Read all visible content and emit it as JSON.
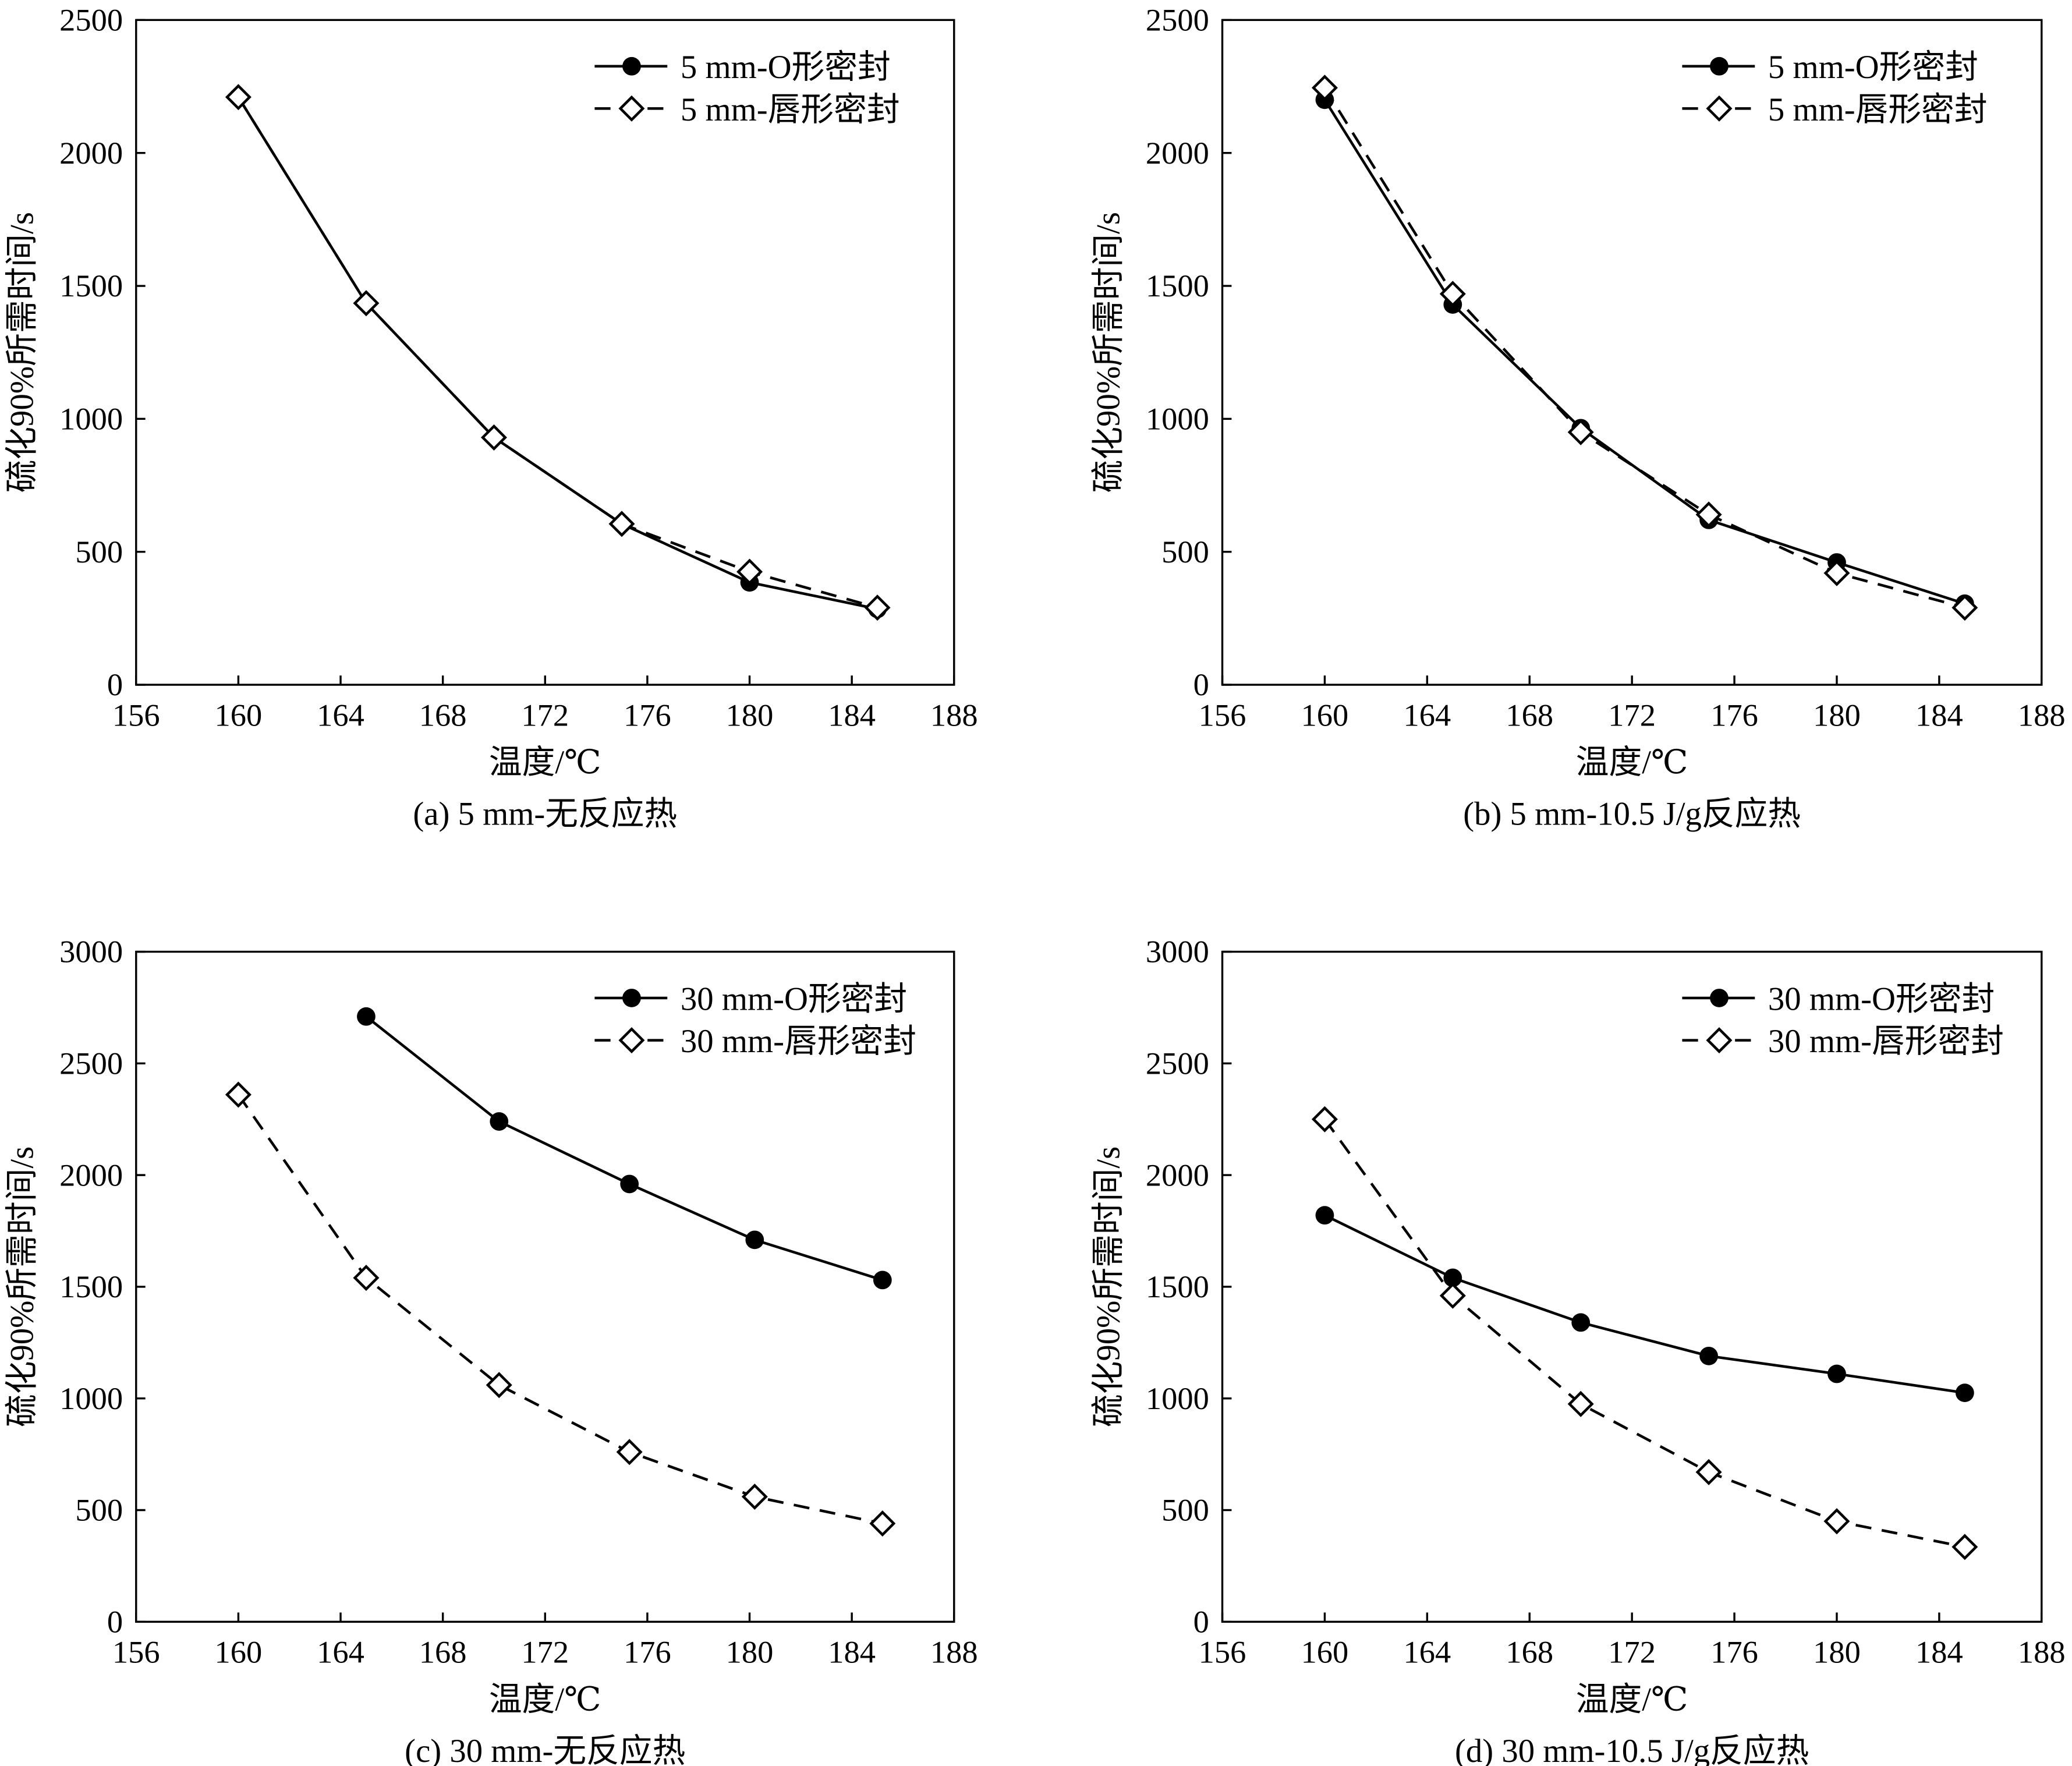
{
  "chart_data": [
    {
      "type": "line",
      "caption": "(a) 5 mm-无反应热",
      "xlabel": "温度/℃",
      "ylabel": "硫化90%所需时间/s",
      "xlim": [
        156,
        188
      ],
      "ylim": [
        0,
        2500
      ],
      "xticks": [
        156,
        160,
        164,
        168,
        172,
        176,
        180,
        184,
        188
      ],
      "yticks": [
        0,
        500,
        1000,
        1500,
        2000,
        2500
      ],
      "legend_position": "top-right",
      "series": [
        {
          "name": "5 mm-O形密封",
          "style": "solid-filled-circle",
          "x": [
            160,
            165,
            170,
            175,
            180,
            185
          ],
          "y": [
            2210,
            1435,
            930,
            605,
            385,
            285
          ]
        },
        {
          "name": "5 mm-唇形密封",
          "style": "dashed-open-diamond",
          "x": [
            160,
            165,
            170,
            175,
            180,
            185
          ],
          "y": [
            2210,
            1435,
            930,
            605,
            425,
            290
          ]
        }
      ]
    },
    {
      "type": "line",
      "caption": "(b) 5 mm-10.5 J/g反应热",
      "xlabel": "温度/℃",
      "ylabel": "硫化90%所需时间/s",
      "xlim": [
        156,
        188
      ],
      "ylim": [
        0,
        2500
      ],
      "xticks": [
        156,
        160,
        164,
        168,
        172,
        176,
        180,
        184,
        188
      ],
      "yticks": [
        0,
        500,
        1000,
        1500,
        2000,
        2500
      ],
      "legend_position": "top-right",
      "series": [
        {
          "name": "5 mm-O形密封",
          "style": "solid-filled-circle",
          "x": [
            160,
            165,
            170,
            175,
            180,
            185
          ],
          "y": [
            2200,
            1430,
            965,
            620,
            460,
            305
          ]
        },
        {
          "name": "5 mm-唇形密封",
          "style": "dashed-open-diamond",
          "x": [
            160,
            165,
            170,
            175,
            180,
            185
          ],
          "y": [
            2245,
            1470,
            950,
            640,
            420,
            290
          ]
        }
      ]
    },
    {
      "type": "line",
      "caption": "(c) 30 mm-无反应热",
      "xlabel": "温度/℃",
      "ylabel": "硫化90%所需时间/s",
      "xlim": [
        156,
        188
      ],
      "ylim": [
        0,
        3000
      ],
      "xticks": [
        156,
        160,
        164,
        168,
        172,
        176,
        180,
        184,
        188
      ],
      "yticks": [
        0,
        500,
        1000,
        1500,
        2000,
        2500,
        3000
      ],
      "legend_position": "top-right",
      "series": [
        {
          "name": "30 mm-O形密封",
          "style": "solid-filled-circle",
          "x": [
            165,
            170.2,
            175.3,
            180.2,
            185.2
          ],
          "y": [
            2710,
            2240,
            1960,
            1710,
            1530
          ]
        },
        {
          "name": "30 mm-唇形密封",
          "style": "dashed-open-diamond",
          "x": [
            160,
            165,
            170.2,
            175.3,
            180.2,
            185.2
          ],
          "y": [
            2360,
            1540,
            1060,
            760,
            560,
            440
          ]
        }
      ]
    },
    {
      "type": "line",
      "caption": "(d) 30 mm-10.5 J/g反应热",
      "xlabel": "温度/℃",
      "ylabel": "硫化90%所需时间/s",
      "xlim": [
        156,
        188
      ],
      "ylim": [
        0,
        3000
      ],
      "xticks": [
        156,
        160,
        164,
        168,
        172,
        176,
        180,
        184,
        188
      ],
      "yticks": [
        0,
        500,
        1000,
        1500,
        2000,
        2500,
        3000
      ],
      "legend_position": "top-right",
      "series": [
        {
          "name": "30 mm-O形密封",
          "style": "solid-filled-circle",
          "x": [
            160,
            165,
            170,
            175,
            180,
            185
          ],
          "y": [
            1820,
            1540,
            1340,
            1190,
            1110,
            1025
          ]
        },
        {
          "name": "30 mm-唇形密封",
          "style": "dashed-open-diamond",
          "x": [
            160,
            165,
            170,
            175,
            180,
            185
          ],
          "y": [
            2250,
            1460,
            975,
            670,
            450,
            335
          ]
        }
      ]
    }
  ]
}
